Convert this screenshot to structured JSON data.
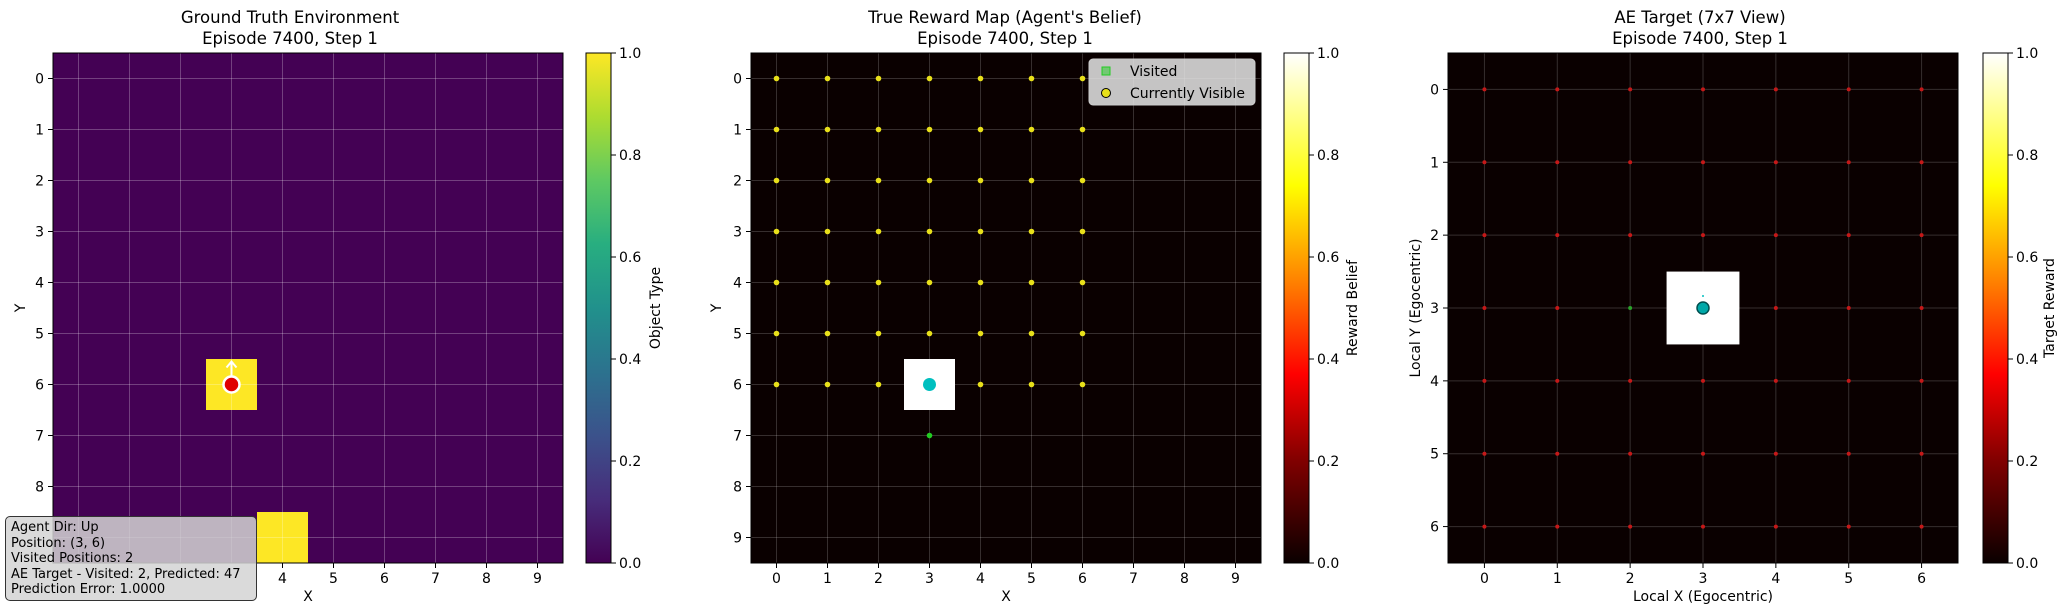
{
  "chart_data": [
    {
      "type": "heatmap",
      "title": "Ground Truth Environment",
      "subtitle": "Episode 7400, Step 1",
      "xlabel": "X",
      "ylabel": "Y",
      "xticks": [
        4,
        5,
        6,
        7,
        8,
        9
      ],
      "yticks": [
        0,
        1,
        2,
        3,
        4,
        5,
        6,
        7,
        8
      ],
      "grid_size": 10,
      "background_value": 0.0,
      "cells": [
        {
          "x": 3,
          "y": 6,
          "value": 1.0
        },
        {
          "x": 4,
          "y": 9,
          "value": 1.0
        }
      ],
      "agent": {
        "x": 3,
        "y": 6,
        "direction": "up",
        "color": "#e00000"
      },
      "colorbar": {
        "label": "Object Type",
        "ticks": [
          "0.0",
          "0.2",
          "0.4",
          "0.6",
          "0.8",
          "1.0"
        ],
        "colormap": "viridis"
      }
    },
    {
      "type": "heatmap",
      "title": "True Reward Map (Agent's Belief)",
      "subtitle": "Episode 7400, Step 1",
      "xlabel": "X",
      "ylabel": "Y",
      "xticks": [
        0,
        1,
        2,
        3,
        4,
        5,
        6,
        7,
        8,
        9
      ],
      "yticks": [
        0,
        1,
        2,
        3,
        4,
        5,
        6,
        7,
        8,
        9
      ],
      "grid_size": 10,
      "background_value": 0.0,
      "cells": [
        {
          "x": 3,
          "y": 6,
          "value": 1.0
        }
      ],
      "visible_region": {
        "x_min": 0,
        "x_max": 6,
        "y_min": 0,
        "y_max": 6
      },
      "visited": [
        {
          "x": 3,
          "y": 7
        }
      ],
      "agent": {
        "x": 3,
        "y": 6,
        "color": "#00bfbf"
      },
      "legend": {
        "position": "top-right",
        "entries": [
          "Visited",
          "Currently Visible"
        ]
      },
      "colorbar": {
        "label": "Reward Belief",
        "ticks": [
          "0.0",
          "0.2",
          "0.4",
          "0.6",
          "0.8",
          "1.0"
        ],
        "colormap": "hot"
      }
    },
    {
      "type": "heatmap",
      "title": "AE Target (7x7 View)",
      "subtitle": "Episode 7400, Step 1",
      "xlabel": "Local X (Egocentric)",
      "ylabel": "Local Y (Egocentric)",
      "xticks": [
        0,
        1,
        2,
        3,
        4,
        5,
        6
      ],
      "yticks": [
        0,
        1,
        2,
        3,
        4,
        5,
        6
      ],
      "grid_size": 7,
      "background_value": 0.0,
      "cells": [
        {
          "x": 3,
          "y": 3,
          "value": 1.0
        }
      ],
      "visited": [
        {
          "x": 2,
          "y": 3
        }
      ],
      "agent": {
        "x": 3,
        "y": 3,
        "color": "#00bfbf"
      },
      "colorbar": {
        "label": "Target Reward",
        "ticks": [
          "0.0",
          "0.2",
          "0.4",
          "0.6",
          "0.8",
          "1.0"
        ],
        "colormap": "hot"
      }
    }
  ],
  "info": {
    "agent_dir": "Agent Dir: Up",
    "position": "Position: (3, 6)",
    "visited_positions": "Visited Positions: 2",
    "ae_target": "AE Target - Visited: 2, Predicted: 47",
    "prediction_error": "Prediction Error: 1.0000"
  },
  "colors": {
    "viridis_low": "#440154",
    "viridis_high": "#fde725",
    "hot_low": "#0a0000",
    "hot_high": "#ffffff",
    "visible_marker": "#e8e01a",
    "visited_marker": "#22cc22",
    "ae_marker": "#c41818"
  }
}
